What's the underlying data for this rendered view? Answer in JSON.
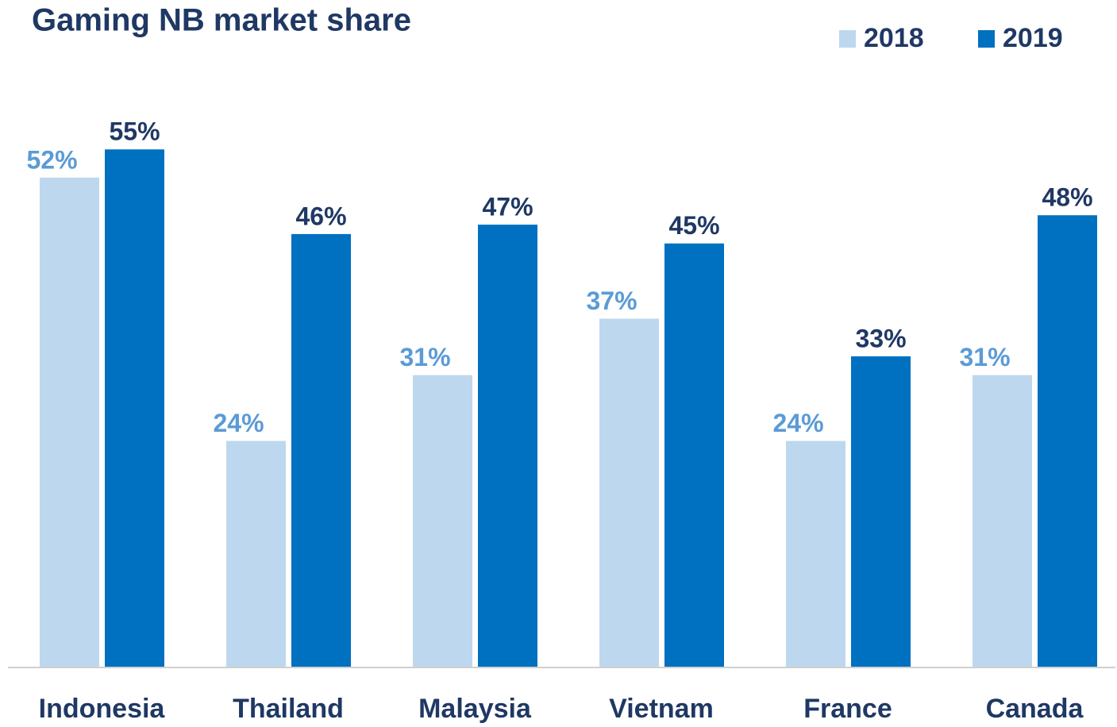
{
  "chart_data": {
    "type": "bar",
    "title": "Gaming NB market share",
    "categories": [
      "Indonesia",
      "Thailand",
      "Malaysia",
      "Vietnam",
      "France",
      "Canada"
    ],
    "series": [
      {
        "name": "2018",
        "color": "#bdd7ee",
        "label_color": "#5b9bd5",
        "values": [
          52,
          24,
          31,
          37,
          24,
          31
        ],
        "value_labels": [
          "52%",
          "24%",
          "31%",
          "37%",
          "24%",
          "31%"
        ]
      },
      {
        "name": "2019",
        "color": "#0070c0",
        "label_color": "#1f3864",
        "values": [
          55,
          46,
          47,
          45,
          33,
          48
        ],
        "value_labels": [
          "55%",
          "46%",
          "47%",
          "45%",
          "33%",
          "48%"
        ]
      }
    ],
    "legend": "top-right"
  }
}
